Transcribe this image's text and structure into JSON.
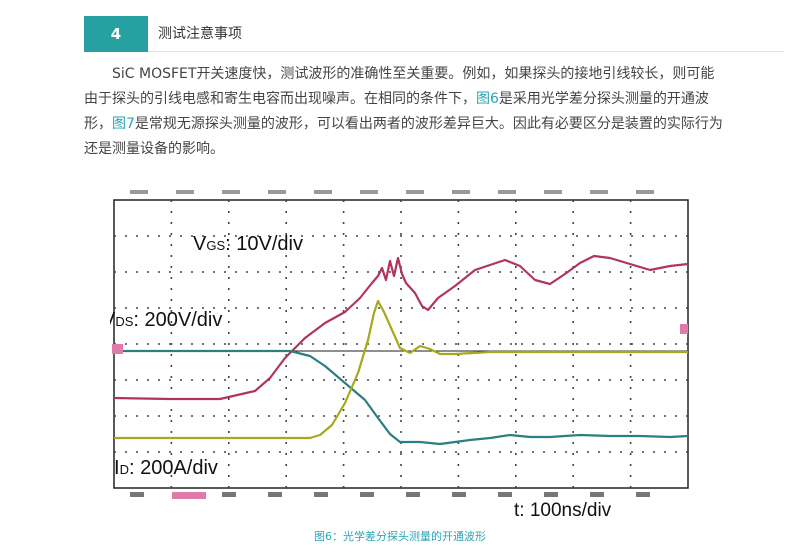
{
  "section": {
    "number": "4",
    "title": "测试注意事项"
  },
  "paragraph": {
    "part1": "SiC MOSFET开关速度快，测试波形的准确性至关重要。例如，如果探头的接地引线较长，则可能由于探头的引线电感和寄生电容而出现噪声。在相同的条件下，",
    "link1": "图6",
    "part2": "是采用光学差分探头测量的开通波形，",
    "link2": "图7",
    "part3": "是常规无源探头测量的波形，可以看出两者的波形差异巨大。因此有必要区分是装置的实际行为还是测量设备的影响。"
  },
  "figure": {
    "labels": {
      "vgs": {
        "main": "V",
        "sub": "GS",
        "rest": ": 10V/div"
      },
      "vds": {
        "main": "V",
        "sub": "DS",
        "rest": ": 200V/div"
      },
      "id": {
        "main": "I",
        "sub": "D",
        "rest": ": 200A/div"
      },
      "time": "t: 100ns/div"
    },
    "colors": {
      "vgs": "#b2345e",
      "vds": "#2b7f7f",
      "id": "#a8a81c",
      "grid": "#444444",
      "border": "#222222",
      "marker_pink": "#e07aa8"
    },
    "caption": "图6：光学差分探头测量的开通波形"
  }
}
